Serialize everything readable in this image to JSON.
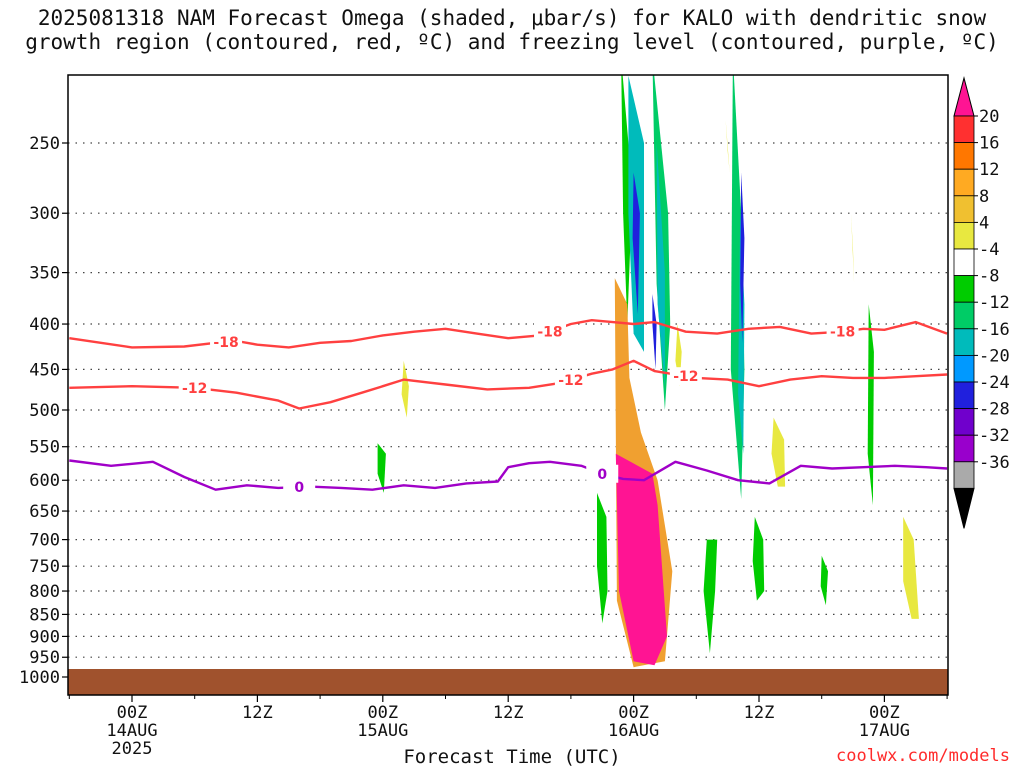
{
  "title": {
    "line1": "2025081318 NAM Forecast Omega (shaded, μbar/s) for KALO with dendritic snow",
    "line2": "growth region (contoured, red, ºC) and freezing level (contoured, purple, ºC)"
  },
  "xlabel": "Forecast Time (UTC)",
  "credit": "coolwx.com/models",
  "chart_data": {
    "type": "heatmap",
    "station": "KALO",
    "model_run": "2025081318",
    "xlabel": "Forecast Time (UTC)",
    "ylabel": "",
    "y_scale": "log-pressure",
    "y_inverted": true,
    "xlim_hours": [
      -6,
      78
    ],
    "ylim_hPa": [
      1050,
      200
    ],
    "grid": "dotted",
    "x_ticks": [
      {
        "hour": 0,
        "label": "00Z",
        "sub": [
          "14AUG",
          "2025"
        ]
      },
      {
        "hour": 12,
        "label": "12Z",
        "sub": []
      },
      {
        "hour": 24,
        "label": "00Z",
        "sub": [
          "15AUG"
        ]
      },
      {
        "hour": 36,
        "label": "12Z",
        "sub": []
      },
      {
        "hour": 48,
        "label": "00Z",
        "sub": [
          "16AUG"
        ]
      },
      {
        "hour": 60,
        "label": "12Z",
        "sub": []
      },
      {
        "hour": 72,
        "label": "00Z",
        "sub": [
          "17AUG"
        ]
      }
    ],
    "y_ticks": [
      1000,
      950,
      900,
      850,
      800,
      750,
      700,
      650,
      600,
      550,
      500,
      450,
      400,
      350,
      300,
      250
    ],
    "surface_color": "#a0522d",
    "contours": [
      {
        "level": -18,
        "label": "-18",
        "color": "#ff4040",
        "x": [
          -6,
          0,
          5,
          8,
          10,
          12,
          15,
          18,
          21,
          24,
          27,
          30,
          33,
          36,
          39,
          42,
          44,
          46,
          48,
          50,
          53,
          56,
          59,
          62,
          65,
          68,
          70,
          72,
          75,
          78
        ],
        "y": [
          415,
          425,
          424,
          420,
          418,
          422,
          425,
          420,
          418,
          412,
          408,
          405,
          410,
          415,
          412,
          400,
          396,
          398,
          400,
          398,
          408,
          410,
          405,
          403,
          410,
          408,
          405,
          406,
          398,
          410
        ],
        "label_x": [
          9,
          40,
          68
        ]
      },
      {
        "level": -12,
        "label": "-12",
        "color": "#ff4040",
        "x": [
          -6,
          0,
          6,
          10,
          14,
          16,
          19,
          22,
          24,
          26,
          30,
          34,
          38,
          41,
          44,
          46,
          48,
          50,
          54,
          57,
          60,
          63,
          66,
          69,
          72,
          75,
          78
        ],
        "y": [
          472,
          470,
          472,
          478,
          488,
          498,
          490,
          478,
          470,
          462,
          468,
          474,
          472,
          466,
          455,
          450,
          440,
          452,
          460,
          462,
          470,
          462,
          458,
          460,
          460,
          458,
          456
        ],
        "label_x": [
          6,
          42,
          53
        ]
      },
      {
        "level": 0,
        "label": "0",
        "color": "#a000c8",
        "x": [
          -6,
          -2,
          2,
          5,
          8,
          11,
          14,
          17,
          20,
          23,
          26,
          29,
          32,
          35,
          36,
          38,
          40,
          43,
          45,
          47,
          49,
          52,
          55,
          58,
          61,
          64,
          67,
          70,
          73,
          76,
          78
        ],
        "y": [
          570,
          578,
          572,
          595,
          615,
          608,
          612,
          610,
          612,
          615,
          608,
          612,
          605,
          602,
          580,
          574,
          572,
          578,
          590,
          598,
          600,
          572,
          585,
          600,
          605,
          578,
          582,
          580,
          578,
          580,
          582
        ],
        "label_x": [
          16,
          45
        ]
      }
    ],
    "omega_regions": [
      {
        "value": -6,
        "x": [
          46.8,
          47.5,
          47.8,
          47.4,
          47.0,
          46.8
        ],
        "y": [
          200,
          250,
          300,
          400,
          300,
          200
        ]
      },
      {
        "value": -8,
        "x": [
          49.8,
          51.3,
          51.5,
          51.0,
          50.2,
          49.8
        ],
        "y": [
          200,
          300,
          400,
          500,
          360,
          200
        ]
      },
      {
        "value": -8,
        "x": [
          57.5,
          58.3,
          58.6,
          58.3,
          57.3,
          57.5
        ],
        "y": [
          200,
          300,
          450,
          630,
          450,
          200
        ]
      },
      {
        "value": -6,
        "x": [
          55.0,
          56.0,
          55.8,
          55.3,
          54.7,
          55.0
        ],
        "y": [
          700,
          700,
          800,
          940,
          800,
          700
        ]
      },
      {
        "value": -6,
        "x": [
          44.5,
          45.4,
          45.5,
          45.0,
          44.5
        ],
        "y": [
          620,
          660,
          800,
          870,
          750
        ]
      },
      {
        "value": -6,
        "x": [
          23.5,
          24.3,
          24.1,
          23.5
        ],
        "y": [
          545,
          560,
          620,
          590
        ]
      },
      {
        "value": -6,
        "x": [
          59.6,
          60.4,
          60.5,
          59.8,
          59.4
        ],
        "y": [
          660,
          700,
          800,
          820,
          740
        ]
      },
      {
        "value": -6,
        "x": [
          70.5,
          71.0,
          70.9,
          70.4
        ],
        "y": [
          380,
          430,
          640,
          560
        ]
      },
      {
        "value": -6,
        "x": [
          66.0,
          66.6,
          66.4,
          65.9
        ],
        "y": [
          730,
          760,
          830,
          790
        ]
      },
      {
        "value": 6,
        "x": [
          26.0,
          26.5,
          26.3,
          25.8
        ],
        "y": [
          440,
          470,
          510,
          480
        ]
      },
      {
        "value": 6,
        "x": [
          73.8,
          74.8,
          75.3,
          74.6,
          73.8
        ],
        "y": [
          660,
          700,
          860,
          860,
          780
        ]
      },
      {
        "value": 6,
        "x": [
          61.4,
          62.4,
          62.5,
          61.8,
          61.2
        ],
        "y": [
          510,
          540,
          610,
          610,
          560
        ]
      },
      {
        "value": 6,
        "x": [
          52.2,
          52.6,
          52.4,
          52.0
        ],
        "y": [
          400,
          430,
          470,
          440
        ]
      },
      {
        "value": 6,
        "x": [
          56.8,
          57.2,
          57.0
        ],
        "y": [
          235,
          270,
          255
        ]
      },
      {
        "value": 6,
        "x": [
          68.8,
          69.1,
          69.0
        ],
        "y": [
          300,
          360,
          330
        ]
      },
      {
        "value": -12,
        "x": [
          47.5,
          49.0,
          49.0,
          48.0,
          47.5
        ],
        "y": [
          210,
          250,
          430,
          410,
          300
        ]
      },
      {
        "value": -12,
        "x": [
          50.2,
          51.0,
          51.0,
          50.3
        ],
        "y": [
          250,
          350,
          470,
          380
        ]
      },
      {
        "value": -12,
        "x": [
          58.2,
          58.6,
          58.5,
          58.0
        ],
        "y": [
          300,
          380,
          560,
          480
        ]
      },
      {
        "value": -12,
        "x": [
          48.3,
          49.5,
          49.4,
          48.3
        ],
        "y": [
          680,
          700,
          800,
          790
        ]
      },
      {
        "value": -22,
        "x": [
          48.0,
          48.6,
          48.4,
          47.9
        ],
        "y": [
          270,
          300,
          390,
          320
        ]
      },
      {
        "value": -22,
        "x": [
          49.8,
          50.2,
          50.1,
          49.8
        ],
        "y": [
          370,
          400,
          450,
          400
        ]
      },
      {
        "value": -22,
        "x": [
          58.3,
          58.6,
          58.4,
          58.2
        ],
        "y": [
          270,
          320,
          420,
          360
        ]
      },
      {
        "value": 18,
        "x": [
          46.3,
          49.8,
          50.3,
          51.2,
          50.0,
          48.0,
          46.6
        ],
        "y": [
          560,
          590,
          640,
          900,
          970,
          960,
          800
        ]
      },
      {
        "value": 10,
        "x": [
          46.2,
          47.4,
          47.6,
          48.7,
          50.3,
          51.7,
          51.0,
          48.0,
          46.4
        ],
        "y": [
          355,
          380,
          460,
          530,
          600,
          760,
          960,
          975,
          820
        ]
      }
    ],
    "colorbar": {
      "labels": [
        "20",
        "16",
        "12",
        "8",
        "4",
        "-4",
        "-8",
        "-12",
        "-16",
        "-20",
        "-24",
        "-28",
        "-32",
        "-36"
      ],
      "colors": [
        "#ff1493",
        "#ff3030",
        "#ff7700",
        "#ffaa22",
        "#f0c030",
        "#e8e840",
        "#ffffff",
        "#00cc00",
        "#00cc66",
        "#00bbbb",
        "#0099ff",
        "#2020dd",
        "#7000cc",
        "#9900cc",
        "#aaaaaa",
        "#000000"
      ]
    }
  }
}
